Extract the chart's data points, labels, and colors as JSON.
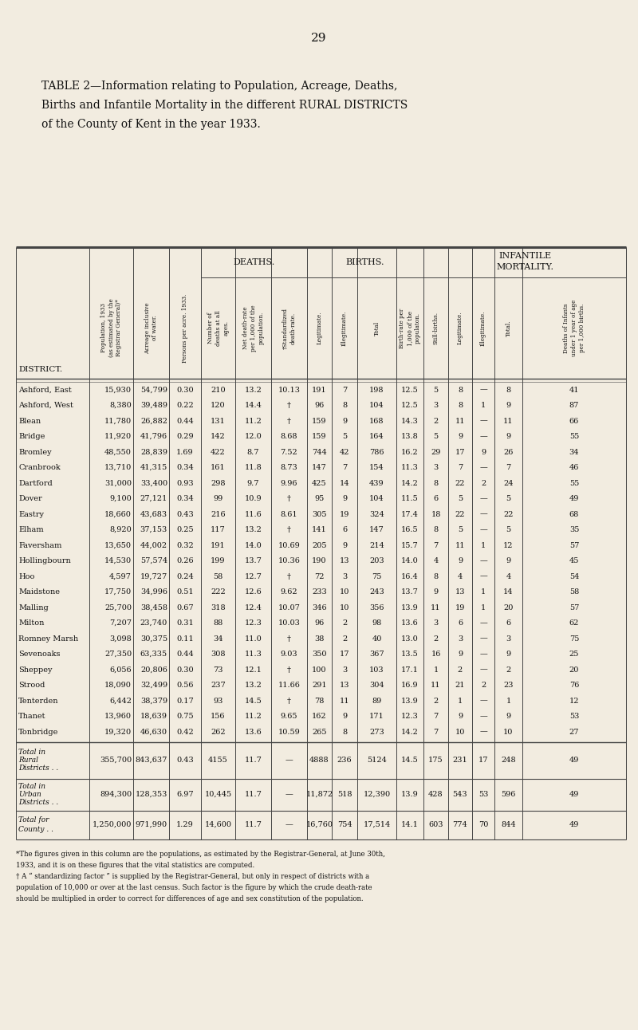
{
  "page_number": "29",
  "title_lines": [
    "TABLE 2—Information relating to Population, Acreage, Deaths,",
    "Births and Infantile Mortality in the different RURAL DISTRICTS",
    "of the County of Kent in the year 1933."
  ],
  "districts": [
    "Ashford, East",
    "Ashford, West",
    "Blean",
    "Bridge",
    "Bromley",
    "Cranbrook",
    "Dartford",
    "Dover",
    "Eastry",
    "Elham",
    "Faversham",
    "Hollingbourn",
    "Hoo",
    "Maidstone",
    "Malling",
    "Milton",
    "Romney Marsh",
    "Sevenoaks",
    "Sheppey",
    "Strood",
    "Tenterden",
    "Thanet",
    "Tonbridge"
  ],
  "data": [
    [
      15930,
      54799,
      0.3,
      210,
      13.2,
      "10.13",
      191,
      7,
      198,
      12.5,
      5,
      8,
      "—",
      8,
      41
    ],
    [
      8380,
      39489,
      0.22,
      120,
      14.4,
      "†",
      96,
      8,
      104,
      12.5,
      3,
      8,
      1,
      9,
      87
    ],
    [
      11780,
      26882,
      0.44,
      131,
      11.2,
      "†",
      159,
      9,
      168,
      14.3,
      2,
      11,
      "—",
      11,
      66
    ],
    [
      11920,
      41796,
      0.29,
      142,
      12.0,
      "8.68",
      159,
      5,
      164,
      13.8,
      5,
      9,
      "—",
      9,
      55
    ],
    [
      48550,
      28839,
      1.69,
      422,
      8.7,
      "7.52",
      744,
      42,
      786,
      16.2,
      29,
      17,
      9,
      26,
      34
    ],
    [
      13710,
      41315,
      0.34,
      161,
      11.8,
      "8.73",
      147,
      7,
      154,
      11.3,
      3,
      7,
      "—",
      7,
      46
    ],
    [
      31000,
      33400,
      0.93,
      298,
      9.7,
      "9.96",
      425,
      14,
      439,
      14.2,
      8,
      22,
      2,
      24,
      55
    ],
    [
      9100,
      27121,
      0.34,
      99,
      10.9,
      "†",
      95,
      9,
      104,
      11.5,
      6,
      5,
      "—",
      5,
      49
    ],
    [
      18660,
      43683,
      0.43,
      216,
      11.6,
      "8.61",
      305,
      19,
      324,
      17.4,
      18,
      22,
      "—",
      22,
      68
    ],
    [
      8920,
      37153,
      0.25,
      117,
      13.2,
      "†",
      141,
      6,
      147,
      16.5,
      8,
      5,
      "—",
      5,
      35
    ],
    [
      13650,
      44002,
      0.32,
      191,
      14.0,
      "10.69",
      205,
      9,
      214,
      15.7,
      7,
      11,
      1,
      12,
      57
    ],
    [
      14530,
      57574,
      0.26,
      199,
      13.7,
      "10.36",
      190,
      13,
      203,
      14.0,
      4,
      9,
      "—",
      9,
      45
    ],
    [
      4597,
      19727,
      0.24,
      58,
      12.7,
      "†",
      72,
      3,
      75,
      16.4,
      8,
      4,
      "—",
      4,
      54
    ],
    [
      17750,
      34996,
      0.51,
      222,
      12.6,
      "9.62",
      233,
      10,
      243,
      13.7,
      9,
      13,
      1,
      14,
      58
    ],
    [
      25700,
      38458,
      0.67,
      318,
      12.4,
      "10.07",
      346,
      10,
      356,
      13.9,
      11,
      19,
      1,
      20,
      57
    ],
    [
      7207,
      23740,
      0.31,
      88,
      12.3,
      "10.03",
      96,
      2,
      98,
      13.6,
      3,
      6,
      "—",
      6,
      62
    ],
    [
      3098,
      30375,
      0.11,
      34,
      11.0,
      "†",
      38,
      2,
      40,
      13.0,
      2,
      3,
      "—",
      3,
      75
    ],
    [
      27350,
      63335,
      0.44,
      308,
      11.3,
      "9.03",
      350,
      17,
      367,
      13.5,
      16,
      9,
      "—",
      9,
      25
    ],
    [
      6056,
      20806,
      0.3,
      73,
      12.1,
      "†",
      100,
      3,
      103,
      17.1,
      1,
      2,
      "—",
      2,
      20
    ],
    [
      18090,
      32499,
      0.56,
      237,
      13.2,
      "11.66",
      291,
      13,
      304,
      16.9,
      11,
      21,
      2,
      23,
      76
    ],
    [
      6442,
      38379,
      0.17,
      93,
      14.5,
      "†",
      78,
      11,
      89,
      13.9,
      2,
      1,
      "—",
      1,
      12
    ],
    [
      13960,
      18639,
      0.75,
      156,
      11.2,
      "9.65",
      162,
      9,
      171,
      12.3,
      7,
      9,
      "—",
      9,
      53
    ],
    [
      19320,
      46630,
      0.42,
      262,
      13.6,
      "10.59",
      265,
      8,
      273,
      14.2,
      7,
      10,
      "—",
      10,
      27
    ]
  ],
  "total_data": [
    [
      355700,
      843637,
      0.43,
      4155,
      11.7,
      "—",
      4888,
      236,
      5124,
      14.5,
      175,
      231,
      17,
      248,
      49
    ],
    [
      894300,
      128353,
      6.97,
      10445,
      11.7,
      "—",
      11872,
      518,
      12390,
      13.9,
      428,
      543,
      53,
      596,
      49
    ],
    [
      "1,250,000",
      971990,
      1.29,
      14600,
      11.7,
      "—",
      16760,
      754,
      17514,
      14.1,
      603,
      774,
      70,
      844,
      49
    ]
  ],
  "total_labels": [
    [
      "Total in",
      "Rural",
      "Districts . ."
    ],
    [
      "Total in",
      "Urban",
      "Districts . ."
    ],
    [
      "Total for",
      "County . ."
    ]
  ],
  "total_label_styles": [
    "italic_caps",
    "italic_caps",
    "italic_caps"
  ],
  "col_headers": [
    "Population, 1933\n(as estimated by the\nRegistrar General)*",
    "Acreage inclusive\nof water.",
    "Persons per acre. 1933.",
    "Number of\ndeaths at all\nages.",
    "Net death-rate\nper 1,000 of the\npopulation.",
    "†Standardized\ndeath-rate.",
    "Legitimate.",
    "Illegitimate.",
    "Total",
    "Birth-rate per\n1,000 of the\npopulaton.",
    "Still-births.",
    "Legitimate.",
    "Illegitimate.",
    "Total.",
    "Deaths of Infants\nunder 1 year of age\nper 1,000 births."
  ],
  "footnotes": [
    "*The figures given in this column are the populations, as estimated by the Registrar-General, at June 30th,",
    "1933, and it is on these figures that the vital statistics are computed.",
    "† A “ standardizing factor ” is supplied by the Registrar-General, but only in respect of districts with a",
    "population of 10,000 or over at the last census. Such factor is the figure by which the crude death-rate",
    "should be multiplied in order to correct for differences of age and sex constitution of the population."
  ],
  "bg_color": "#f2ece0",
  "text_color": "#111111",
  "line_color": "#444444"
}
